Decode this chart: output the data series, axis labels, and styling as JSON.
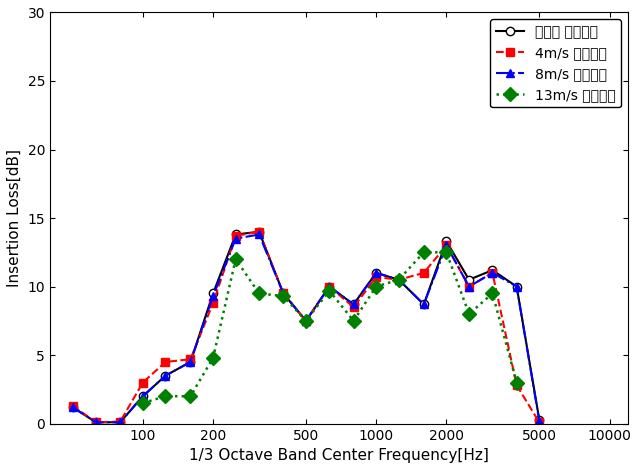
{
  "freqs": [
    50,
    63,
    80,
    100,
    125,
    160,
    200,
    250,
    315,
    400,
    500,
    630,
    800,
    1000,
    1250,
    1600,
    2000,
    2500,
    3150,
    4000,
    5000
  ],
  "series1_name": "음원만 삽입손실",
  "series1_color": "#000000",
  "series1_linestyle": "-",
  "series1_marker": "o",
  "series1_markersize": 6,
  "series1_markerfacecolor": "white",
  "series1_linewidth": 1.5,
  "series1_values": [
    1.2,
    0.1,
    0.1,
    2.0,
    3.5,
    4.5,
    9.5,
    13.8,
    14.0,
    9.5,
    7.5,
    10.0,
    8.7,
    11.0,
    10.5,
    8.7,
    13.3,
    10.5,
    11.2,
    10.0,
    0.3
  ],
  "series2_name": "4m/s 삽입손실",
  "series2_color": "#ff0000",
  "series2_linestyle": "--",
  "series2_marker": "s",
  "series2_markersize": 6,
  "series2_markerfacecolor": "#ff0000",
  "series2_linewidth": 1.5,
  "series2_values": [
    1.3,
    0.1,
    0.15,
    3.0,
    4.5,
    4.7,
    8.8,
    13.7,
    14.0,
    9.5,
    7.5,
    10.0,
    8.5,
    10.7,
    10.5,
    11.0,
    13.0,
    10.0,
    11.0,
    2.8,
    0.1
  ],
  "series3_name": "8m/s 삽입손실",
  "series3_color": "#0000ff",
  "series3_linestyle": "-.",
  "series3_marker": "^",
  "series3_markersize": 6,
  "series3_markerfacecolor": "#0000ff",
  "series3_linewidth": 1.5,
  "series3_values": [
    1.2,
    0.1,
    0.1,
    2.0,
    3.5,
    4.5,
    9.3,
    13.5,
    13.8,
    9.5,
    7.5,
    10.0,
    8.7,
    11.0,
    10.5,
    8.7,
    13.0,
    10.0,
    11.0,
    10.0,
    0.2
  ],
  "series4_name": "13m/s 삽입손실",
  "series4_color": "#008000",
  "series4_linestyle": ":",
  "series4_marker": "D",
  "series4_markersize": 7,
  "series4_markerfacecolor": "#008000",
  "series4_linewidth": 1.8,
  "series4_values": [
    null,
    null,
    null,
    1.5,
    2.0,
    2.0,
    4.8,
    12.0,
    9.5,
    9.3,
    7.5,
    9.7,
    7.5,
    10.0,
    10.5,
    12.5,
    12.5,
    8.0,
    9.5,
    3.0,
    null
  ],
  "xlabel": "1/3 Octave Band Center Frequency[Hz]",
  "ylabel": "Insertion Loss[dB]",
  "ylim": [
    0,
    30
  ],
  "yticks": [
    0,
    5,
    10,
    15,
    20,
    25,
    30
  ],
  "background_color": "#ffffff"
}
